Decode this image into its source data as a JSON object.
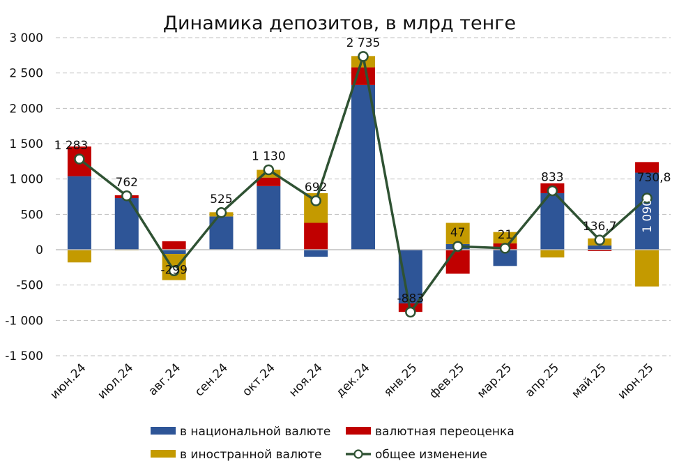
{
  "chart_data": {
    "type": "bar",
    "stacked": true,
    "title": "Динамика депозитов, в млрд тенге",
    "xlabel": "",
    "ylabel": "",
    "ylim": [
      -1500,
      3000
    ],
    "yticks": [
      3000,
      2500,
      2000,
      1500,
      1000,
      500,
      0,
      -500,
      -1000,
      -1500
    ],
    "ytick_labels": [
      "3 000",
      "2 500",
      "2 000",
      "1 500",
      "1 000",
      "500",
      "0",
      "-500",
      "-1 000",
      "-1 500"
    ],
    "grid": true,
    "legend_position": "bottom",
    "categories": [
      "июн.24",
      "июл.24",
      "авг.24",
      "сен.24",
      "окт.24",
      "ноя.24",
      "дек.24",
      "янв.25",
      "фев.25",
      "мар.25",
      "апр.25",
      "май.25",
      "июн.25"
    ],
    "series": [
      {
        "name": "в национальной валюте",
        "color": "#2E5597",
        "values": [
          1040,
          730,
          -60,
          470,
          900,
          -100,
          2330,
          -760,
          80,
          -230,
          800,
          60,
          1090
        ]
      },
      {
        "name": "валютная переоценка",
        "color": "#C00000",
        "values": [
          420,
          40,
          120,
          0,
          120,
          380,
          250,
          -120,
          -340,
          90,
          140,
          -20,
          150
        ]
      },
      {
        "name": "в иностранной валюте",
        "color": "#C49A00",
        "values": [
          -180,
          -10,
          -370,
          60,
          110,
          420,
          160,
          0,
          300,
          160,
          -110,
          100,
          -520
        ]
      }
    ],
    "line": {
      "name": "общее изменение",
      "color": "#2F5233",
      "values": [
        1283,
        762,
        -299,
        525,
        1130,
        692,
        2735,
        -883,
        47,
        21,
        833,
        136.7,
        730.8
      ],
      "labels": [
        "1 283",
        "762",
        "-299",
        "525",
        "1 130",
        "692",
        "2 735",
        "-883",
        "47",
        "21",
        "833",
        "136,7",
        "730,8"
      ]
    },
    "annotation": "1 090"
  }
}
